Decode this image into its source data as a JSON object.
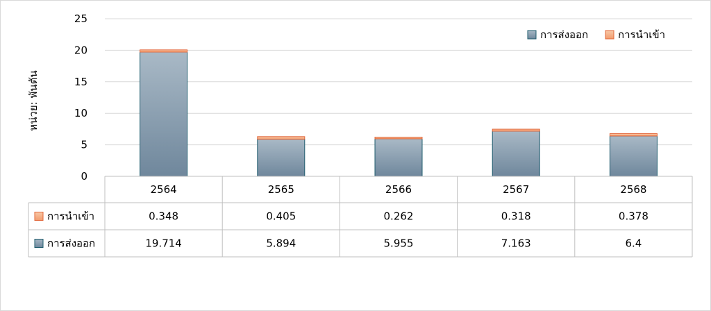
{
  "chart_data": {
    "type": "bar",
    "stacked": true,
    "categories": [
      "2564",
      "2565",
      "2566",
      "2567",
      "2568"
    ],
    "series": [
      {
        "name": "การส่งออก",
        "values": [
          19.714,
          5.894,
          5.955,
          7.163,
          6.4
        ],
        "color": "#7f96aa",
        "border": "#1f5c6e"
      },
      {
        "name": "การนำเข้า",
        "values": [
          0.348,
          0.405,
          0.262,
          0.318,
          0.378
        ],
        "color": "#f4b183",
        "border": "#e2683c"
      }
    ],
    "table_rows": [
      {
        "name": "การนำเข้า",
        "values": [
          "0.348",
          "0.405",
          "0.262",
          "0.318",
          "0.378"
        ]
      },
      {
        "name": "การส่งออก",
        "values": [
          "19.714",
          "5.894",
          "5.955",
          "7.163",
          "6.4"
        ]
      }
    ],
    "ylabel": "หน่วย: พันตัน",
    "ylim": [
      0,
      25
    ],
    "yticks": [
      0,
      5,
      10,
      15,
      20,
      25
    ],
    "grid": true,
    "legend_position": "top-right"
  }
}
